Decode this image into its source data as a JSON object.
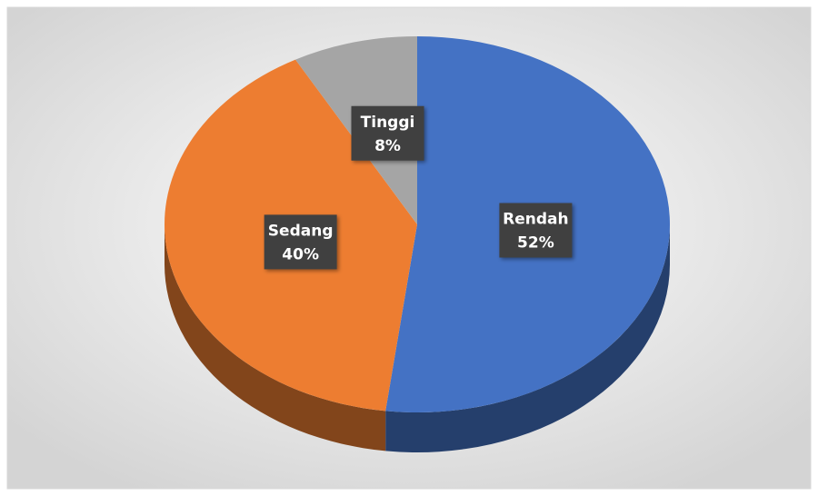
{
  "chart_data": {
    "type": "pie",
    "categories": [
      "Rendah",
      "Sedang",
      "Tinggi"
    ],
    "values": [
      52,
      40,
      8
    ],
    "value_labels": [
      "52%",
      "40%",
      "8%"
    ],
    "colors": [
      "#4472c4",
      "#ed7d31",
      "#a5a5a5"
    ]
  }
}
